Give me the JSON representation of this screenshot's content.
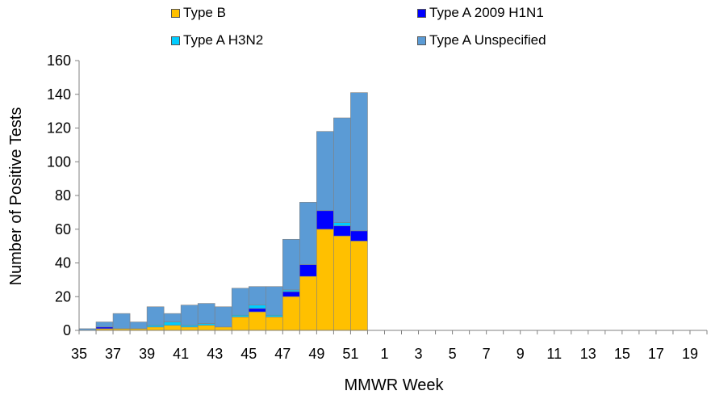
{
  "chart_data": {
    "type": "bar",
    "stacked": true,
    "xlabel": "MMWR Week",
    "ylabel": "Number of Positive Tests",
    "ylim": [
      0,
      160
    ],
    "yticks": [
      "0",
      "20",
      "40",
      "60",
      "80",
      "100",
      "120",
      "140",
      "160"
    ],
    "categories": [
      "35",
      "36",
      "37",
      "38",
      "39",
      "40",
      "41",
      "42",
      "43",
      "44",
      "45",
      "46",
      "47",
      "48",
      "49",
      "50",
      "51",
      "52",
      "1",
      "2",
      "3",
      "4",
      "5",
      "6",
      "7",
      "8",
      "9",
      "10",
      "11",
      "12",
      "13",
      "14",
      "15",
      "16",
      "17",
      "18",
      "19"
    ],
    "xtick_labels": [
      "35",
      "37",
      "39",
      "41",
      "43",
      "45",
      "47",
      "49",
      "51",
      "1",
      "3",
      "5",
      "7",
      "9",
      "11",
      "13",
      "15",
      "17",
      "19"
    ],
    "legend": [
      {
        "name": "Type B",
        "color": "#FFC000"
      },
      {
        "name": "Type A 2009 H1N1",
        "color": "#0000FF"
      },
      {
        "name": "Type A H3N2",
        "color": "#00CCFF"
      },
      {
        "name": "Type A Unspecified",
        "color": "#5B9BD5"
      }
    ],
    "series": [
      {
        "name": "Type B",
        "color": "#FFC000",
        "values": [
          0,
          1,
          1,
          1,
          2,
          3,
          2,
          3,
          2,
          8,
          11,
          8,
          20,
          32,
          60,
          56,
          53,
          0,
          0,
          0,
          0,
          0,
          0,
          0,
          0,
          0,
          0,
          0,
          0,
          0,
          0,
          0,
          0,
          0,
          0,
          0,
          0
        ]
      },
      {
        "name": "Type A 2009 H1N1",
        "color": "#0000FF",
        "values": [
          0,
          1,
          0,
          0,
          0,
          0,
          0,
          0,
          0,
          0,
          2,
          0,
          3,
          7,
          11,
          6,
          6,
          0,
          0,
          0,
          0,
          0,
          0,
          0,
          0,
          0,
          0,
          0,
          0,
          0,
          0,
          0,
          0,
          0,
          0,
          0,
          0
        ]
      },
      {
        "name": "Type A H3N2",
        "color": "#00CCFF",
        "values": [
          0,
          0,
          0,
          0,
          1,
          2,
          1,
          1,
          0,
          1,
          2,
          1,
          1,
          0,
          0,
          2,
          0,
          0,
          0,
          0,
          0,
          0,
          0,
          0,
          0,
          0,
          0,
          0,
          0,
          0,
          0,
          0,
          0,
          0,
          0,
          0,
          0
        ]
      },
      {
        "name": "Type A Unspecified",
        "color": "#5B9BD5",
        "values": [
          1,
          3,
          9,
          4,
          11,
          5,
          12,
          12,
          12,
          16,
          11,
          17,
          30,
          37,
          47,
          62,
          82,
          0,
          0,
          0,
          0,
          0,
          0,
          0,
          0,
          0,
          0,
          0,
          0,
          0,
          0,
          0,
          0,
          0,
          0,
          0,
          0
        ]
      }
    ]
  }
}
